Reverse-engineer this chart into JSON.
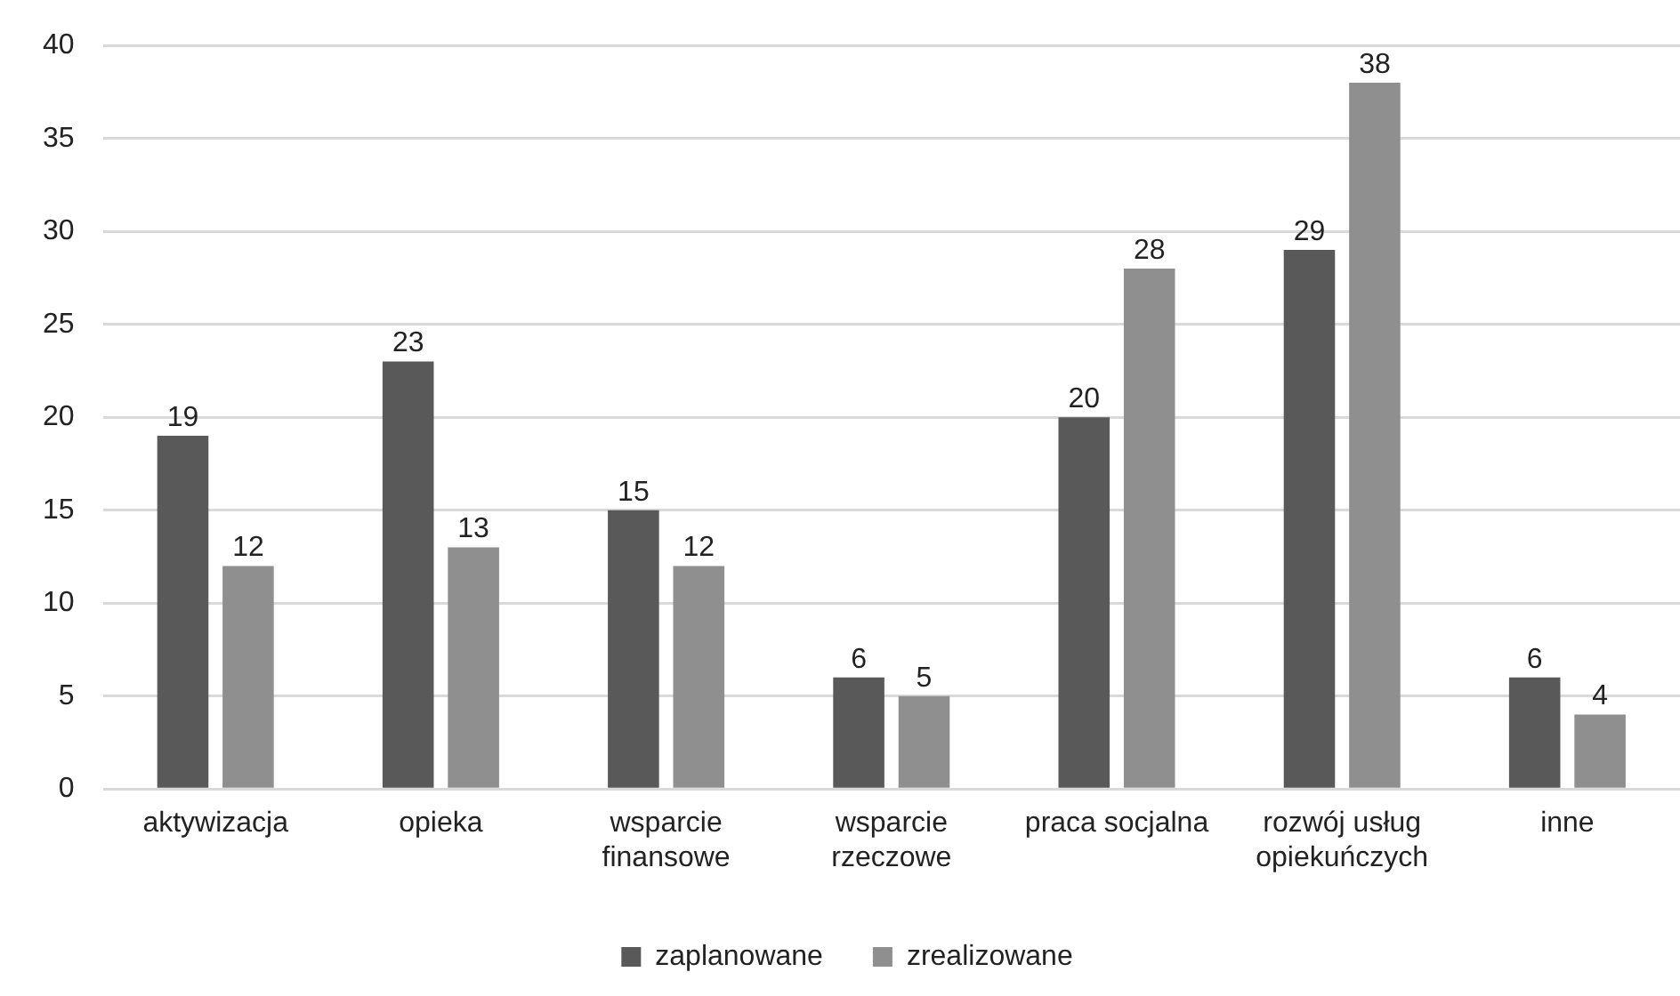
{
  "chart_data": {
    "type": "bar",
    "categories": [
      "aktywizacja",
      "opieka",
      "wsparcie finansowe",
      "wsparcie rzeczowe",
      "praca socjalna",
      "rozwój usług opiekuńczych",
      "inne"
    ],
    "series": [
      {
        "name": "zaplanowane",
        "color": "#595959",
        "values": [
          19,
          23,
          15,
          6,
          20,
          29,
          6
        ]
      },
      {
        "name": "zrealizowane",
        "color": "#8f8f8f",
        "values": [
          12,
          13,
          12,
          5,
          28,
          38,
          4
        ]
      }
    ],
    "ylim": [
      0,
      40
    ],
    "yticks": [
      0,
      5,
      10,
      15,
      20,
      25,
      30,
      35,
      40
    ],
    "grid": "y",
    "legend": "bottom",
    "data_labels": true
  }
}
